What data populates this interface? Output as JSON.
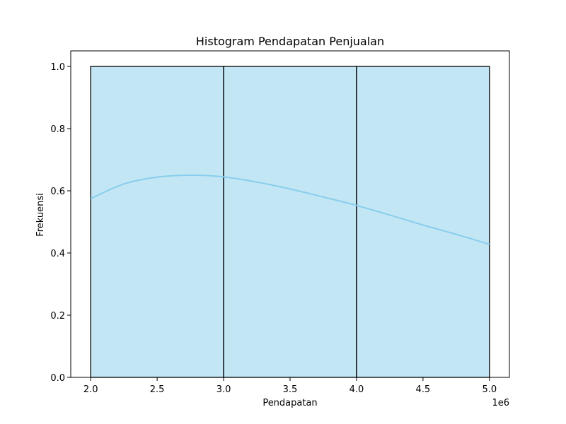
{
  "chart_data": {
    "type": "bar",
    "subtype": "histogram",
    "title": "Histogram Pendapatan Penjualan",
    "xlabel": "Pendapatan",
    "ylabel": "Frekuensi",
    "x_offset_label": "1e6",
    "xlim": [
      1.85,
      5.15
    ],
    "ylim": [
      0,
      1.05
    ],
    "x_ticks": [
      2.0,
      2.5,
      3.0,
      3.5,
      4.0,
      4.5,
      5.0
    ],
    "x_tick_labels": [
      "2.0",
      "2.5",
      "3.0",
      "3.5",
      "4.0",
      "4.5",
      "5.0"
    ],
    "y_ticks": [
      0.0,
      0.2,
      0.4,
      0.6,
      0.8,
      1.0
    ],
    "y_tick_labels": [
      "0.0",
      "0.2",
      "0.4",
      "0.6",
      "0.8",
      "1.0"
    ],
    "bins": [
      {
        "x0": 2.0,
        "x1": 3.0,
        "count": 1
      },
      {
        "x0": 3.0,
        "x1": 4.0,
        "count": 1
      },
      {
        "x0": 4.0,
        "x1": 5.0,
        "count": 1
      }
    ],
    "kde": {
      "x": [
        2.0,
        2.25,
        2.5,
        2.75,
        3.0,
        3.25,
        3.5,
        3.75,
        4.0,
        4.25,
        4.5,
        4.75,
        5.0
      ],
      "y": [
        0.575,
        0.622,
        0.644,
        0.65,
        0.645,
        0.628,
        0.606,
        0.58,
        0.553,
        0.522,
        0.49,
        0.46,
        0.428
      ]
    },
    "grid": false,
    "legend": "none",
    "colors": {
      "bar_fill": "#87ceeb",
      "bar_fill_opacity": 0.5,
      "bar_edge": "#000000",
      "kde_line": "#87ceeb",
      "axes": "#000000"
    }
  }
}
